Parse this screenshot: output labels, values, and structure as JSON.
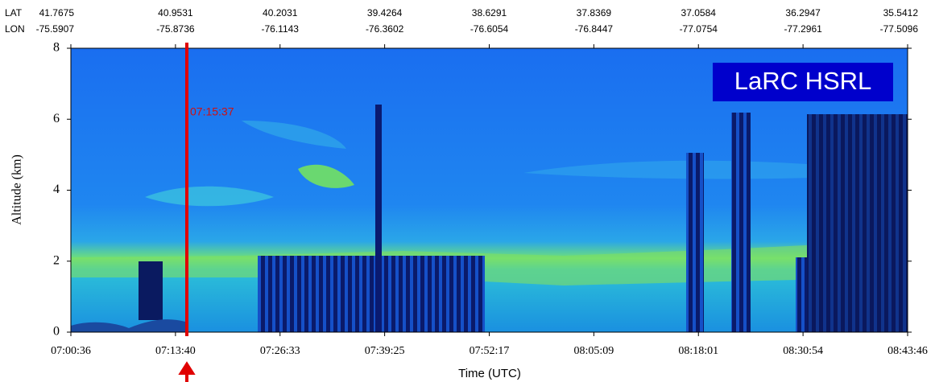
{
  "chart_data": {
    "type": "heatmap",
    "annotation": "LaRC HSRL",
    "marker_label": "07:15:37",
    "xlabel": "Time (UTC)",
    "ylabel": "Altitude (km)",
    "categories": [
      "07:00:36",
      "07:13:40",
      "07:26:33",
      "07:39:25",
      "07:52:17",
      "08:05:09",
      "08:18:01",
      "08:30:54",
      "08:43:46"
    ],
    "ylim": [
      0,
      8
    ],
    "yticks": [
      0,
      2,
      4,
      6,
      8
    ],
    "top_axis": {
      "lat_label": "LAT",
      "lon_label": "LON",
      "lat": [
        41.7675,
        40.9531,
        40.2031,
        39.4264,
        38.6291,
        37.8369,
        37.0584,
        36.2947,
        35.5412
      ],
      "lon": [
        -75.5907,
        -75.8736,
        -76.1143,
        -76.3602,
        -76.6054,
        -76.8447,
        -77.0754,
        -77.2961,
        -77.5096
      ]
    }
  }
}
